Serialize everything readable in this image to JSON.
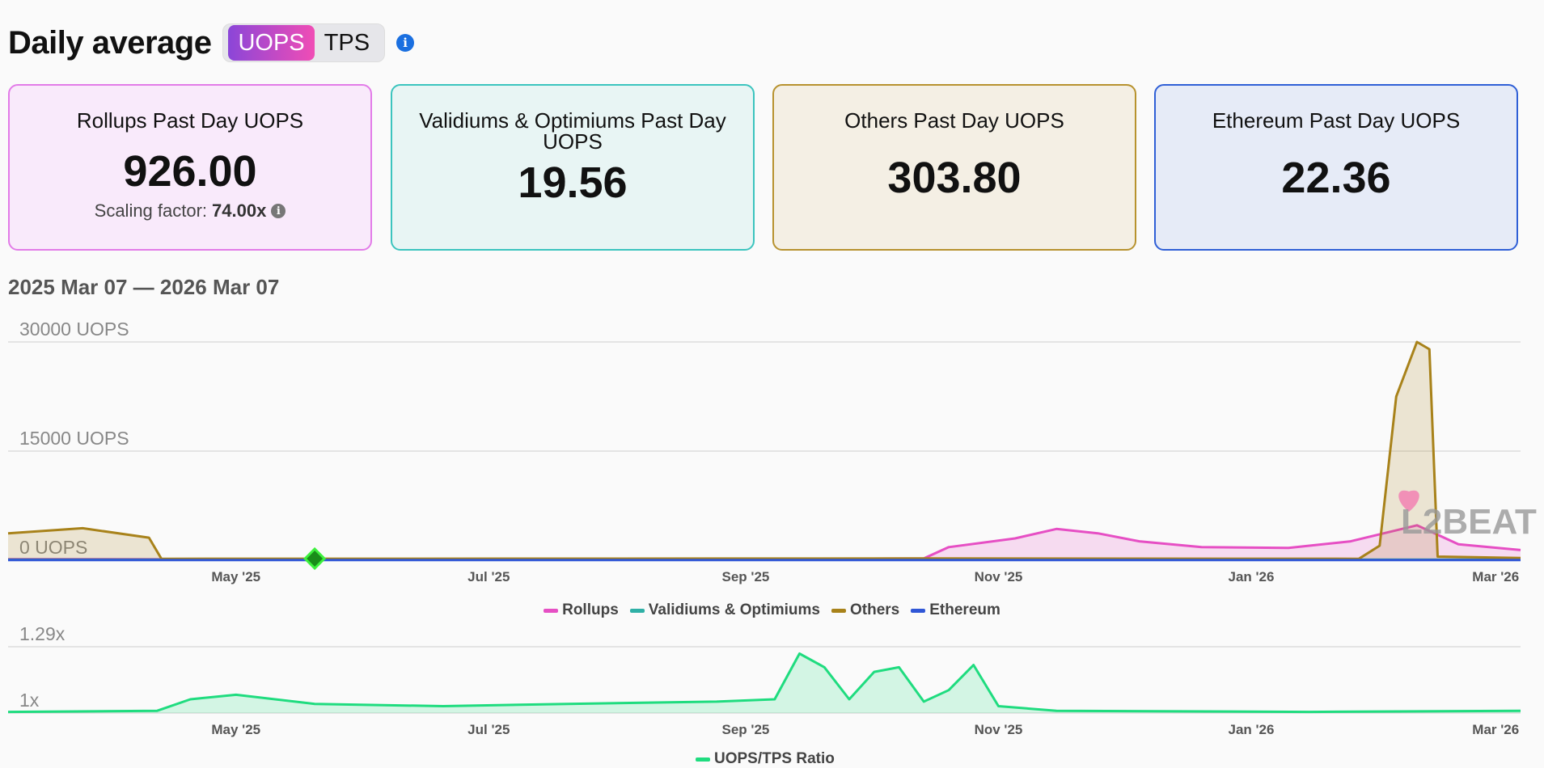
{
  "header": {
    "title": "Daily average",
    "toggle_active": "UOPS",
    "toggle_inactive": "TPS",
    "info_icon": "info-icon"
  },
  "cards": [
    {
      "title": "Rollups Past Day UOPS",
      "value": "926.00",
      "scaling_label": "Scaling factor:",
      "scaling_value": "74.00x",
      "bg": "#f9eafb",
      "border": "#e27be8"
    },
    {
      "title": "Validiums & Optimiums Past Day UOPS",
      "value": "19.56",
      "bg": "#e8f5f4",
      "border": "#3bc4be"
    },
    {
      "title": "Others Past Day UOPS",
      "value": "303.80",
      "bg": "#f4efe4",
      "border": "#b7922e"
    },
    {
      "title": "Ethereum Past Day UOPS",
      "value": "22.36",
      "bg": "#e6ebf7",
      "border": "#2f5fd6"
    }
  ],
  "range": "2025 Mar 07 — 2026 Mar 07",
  "watermark": "L2BEAT",
  "colors": {
    "rollups": "#e64fc4",
    "validiums": "#2fb0a6",
    "others": "#a8821a",
    "ethereum": "#2f56d6",
    "ratio": "#1fdc7f"
  },
  "chart_data": [
    {
      "type": "area",
      "yticks": [
        "30000 UOPS",
        "15000 UOPS",
        "0 UOPS"
      ],
      "ylim": [
        0,
        30000
      ],
      "xticks": [
        "May '25",
        "Jul '25",
        "Sep '25",
        "Nov '25",
        "Jan '26",
        "Mar '26"
      ],
      "x_range": [
        "2025-03-07",
        "2026-03-07"
      ],
      "series": [
        {
          "name": "Rollups",
          "points": [
            [
              "2025-03-07",
              150
            ],
            [
              "2025-06-01",
              130
            ],
            [
              "2025-09-01",
              150
            ],
            [
              "2025-10-14",
              250
            ],
            [
              "2025-10-20",
              1800
            ],
            [
              "2025-11-05",
              3000
            ],
            [
              "2025-11-15",
              4300
            ],
            [
              "2025-11-25",
              3700
            ],
            [
              "2025-12-05",
              2600
            ],
            [
              "2025-12-20",
              1800
            ],
            [
              "2026-01-10",
              1700
            ],
            [
              "2026-01-25",
              2600
            ],
            [
              "2026-02-10",
              4800
            ],
            [
              "2026-02-20",
              2200
            ],
            [
              "2026-03-07",
              1400
            ]
          ]
        },
        {
          "name": "Validiums & Optimiums",
          "points": [
            [
              "2025-03-07",
              80
            ],
            [
              "2026-03-07",
              80
            ]
          ]
        },
        {
          "name": "Others",
          "points": [
            [
              "2025-03-07",
              3700
            ],
            [
              "2025-03-25",
              4400
            ],
            [
              "2025-04-10",
              3100
            ],
            [
              "2025-04-13",
              200
            ],
            [
              "2025-10-15",
              250
            ],
            [
              "2026-01-27",
              200
            ],
            [
              "2026-02-01",
              2000
            ],
            [
              "2026-02-05",
              22500
            ],
            [
              "2026-02-10",
              30000
            ],
            [
              "2026-02-13",
              29000
            ],
            [
              "2026-02-15",
              500
            ],
            [
              "2026-03-07",
              300
            ]
          ]
        },
        {
          "name": "Ethereum",
          "points": [
            [
              "2025-03-07",
              30
            ],
            [
              "2026-03-07",
              30
            ]
          ]
        }
      ]
    },
    {
      "type": "area",
      "yticks": [
        "1.29x",
        "1x"
      ],
      "ylim": [
        1,
        1.29
      ],
      "xticks": [
        "May '25",
        "Jul '25",
        "Sep '25",
        "Nov '25",
        "Jan '26",
        "Mar '26"
      ],
      "x_range": [
        "2025-03-07",
        "2026-03-07"
      ],
      "series": [
        {
          "name": "UOPS/TPS Ratio",
          "points": [
            [
              "2025-03-07",
              1.005
            ],
            [
              "2025-04-12",
              1.01
            ],
            [
              "2025-04-20",
              1.06
            ],
            [
              "2025-05-01",
              1.08
            ],
            [
              "2025-05-20",
              1.04
            ],
            [
              "2025-06-20",
              1.03
            ],
            [
              "2025-07-20",
              1.04
            ],
            [
              "2025-08-25",
              1.05
            ],
            [
              "2025-09-08",
              1.06
            ],
            [
              "2025-09-14",
              1.26
            ],
            [
              "2025-09-20",
              1.2
            ],
            [
              "2025-09-26",
              1.06
            ],
            [
              "2025-10-02",
              1.18
            ],
            [
              "2025-10-08",
              1.2
            ],
            [
              "2025-10-14",
              1.05
            ],
            [
              "2025-10-20",
              1.1
            ],
            [
              "2025-10-26",
              1.21
            ],
            [
              "2025-11-01",
              1.03
            ],
            [
              "2025-11-15",
              1.01
            ],
            [
              "2026-01-15",
              1.005
            ],
            [
              "2026-03-07",
              1.01
            ]
          ]
        }
      ]
    }
  ]
}
